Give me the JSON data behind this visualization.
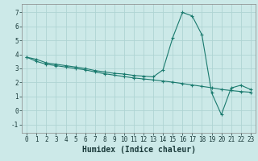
{
  "xlabel": "Humidex (Indice chaleur)",
  "background_color": "#cce9e8",
  "grid_color": "#afd4d3",
  "line_color": "#1a7a6e",
  "xlim": [
    -0.5,
    23.5
  ],
  "ylim": [
    -1.6,
    7.6
  ],
  "xticks": [
    0,
    1,
    2,
    3,
    4,
    5,
    6,
    7,
    8,
    9,
    10,
    11,
    12,
    13,
    14,
    15,
    16,
    17,
    18,
    19,
    20,
    21,
    22,
    23
  ],
  "yticks": [
    -1,
    0,
    1,
    2,
    3,
    4,
    5,
    6,
    7
  ],
  "line1_x": [
    0,
    1,
    2,
    3,
    4,
    5,
    6,
    7,
    8,
    9,
    10,
    11,
    12,
    13,
    14,
    15,
    16,
    17,
    18,
    19,
    20,
    21,
    22,
    23
  ],
  "line1_y": [
    3.8,
    3.65,
    3.4,
    3.3,
    3.2,
    3.1,
    3.0,
    2.85,
    2.75,
    2.65,
    2.6,
    2.5,
    2.45,
    2.4,
    2.9,
    5.2,
    7.0,
    6.75,
    5.4,
    1.25,
    -0.3,
    1.6,
    1.8,
    1.5
  ],
  "line2_x": [
    0,
    1,
    2,
    3,
    4,
    5,
    6,
    7,
    8,
    9,
    10,
    11,
    12,
    13,
    14,
    15,
    16,
    17,
    18,
    19,
    20,
    21,
    22,
    23
  ],
  "line2_y": [
    3.8,
    3.5,
    3.3,
    3.2,
    3.1,
    3.0,
    2.9,
    2.75,
    2.62,
    2.52,
    2.42,
    2.32,
    2.25,
    2.18,
    2.1,
    2.02,
    1.92,
    1.82,
    1.72,
    1.62,
    1.5,
    1.42,
    1.35,
    1.3
  ],
  "marker": "+",
  "markersize": 3,
  "linewidth": 0.8,
  "tick_fontsize": 5.5,
  "xlabel_fontsize": 7.0
}
